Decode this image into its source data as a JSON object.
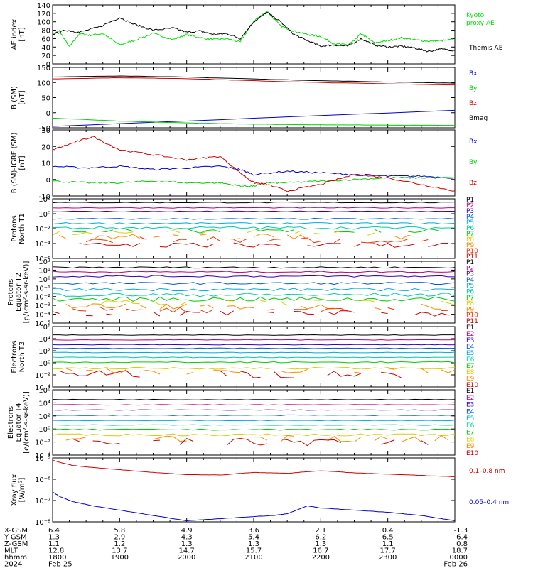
{
  "chart_data": [
    {
      "type": "line",
      "ylabel": [
        "AE index",
        "[nT]"
      ],
      "ylim": [
        0,
        140
      ],
      "yticks": [
        "140",
        "120",
        "100",
        "80",
        "60",
        "40",
        "20",
        "0"
      ],
      "ytick_values": [
        140,
        120,
        100,
        80,
        60,
        40,
        20,
        0
      ],
      "series": [
        {
          "name": "Kyoto proxy AE",
          "color": "#00dd00",
          "legend_lines": [
            "Kyoto",
            "proxy AE"
          ],
          "x": [
            0,
            0.1,
            0.25,
            0.4,
            0.55,
            0.75,
            1,
            1.2,
            1.5,
            1.8,
            2.0,
            2.2,
            2.4,
            2.6,
            2.8,
            3.0,
            3.2,
            3.4,
            3.6,
            3.8,
            4.0,
            4.2,
            4.4,
            4.5,
            4.6,
            4.8,
            5.0,
            5.2,
            5.4,
            5.6,
            5.8,
            6.0
          ],
          "y": [
            70,
            78,
            40,
            72,
            68,
            72,
            45,
            55,
            72,
            58,
            70,
            62,
            58,
            60,
            52,
            102,
            125,
            90,
            78,
            70,
            65,
            48,
            45,
            55,
            72,
            50,
            55,
            62,
            57,
            54,
            55,
            58
          ]
        },
        {
          "name": "Themis AE",
          "color": "#000000",
          "legend_lines": [
            "Themis AE"
          ],
          "x": [
            0,
            0.2,
            0.4,
            0.7,
            1,
            1.2,
            1.5,
            1.8,
            2.0,
            2.2,
            2.4,
            2.6,
            2.8,
            3.0,
            3.2,
            3.4,
            3.6,
            3.8,
            4.0,
            4.2,
            4.4,
            4.6,
            4.8,
            5.0,
            5.2,
            5.4,
            5.6,
            5.8,
            6.0
          ],
          "y": [
            70,
            80,
            75,
            88,
            110,
            95,
            80,
            85,
            75,
            78,
            70,
            72,
            60,
            100,
            122,
            100,
            70,
            55,
            42,
            45,
            42,
            60,
            45,
            40,
            42,
            38,
            30,
            35,
            32
          ]
        }
      ]
    },
    {
      "type": "line",
      "ylabel": [
        "B (SM)",
        "[nT]"
      ],
      "ylim": [
        -50,
        150
      ],
      "yticks": [
        "150",
        "100",
        "50",
        "0",
        "-50"
      ],
      "ytick_values": [
        150,
        100,
        50,
        0,
        -50
      ],
      "series": [
        {
          "name": "Bx",
          "color": "#0000cc",
          "x": [
            0,
            6
          ],
          "y": [
            -45,
            8
          ]
        },
        {
          "name": "By",
          "color": "#00cc00",
          "x": [
            0,
            1,
            2,
            3,
            4,
            5,
            6
          ],
          "y": [
            -18,
            -28,
            -34,
            -38,
            -40,
            -41,
            -42
          ]
        },
        {
          "name": "Bz",
          "color": "#cc0000",
          "x": [
            0,
            1,
            2,
            3,
            4,
            5,
            6
          ],
          "y": [
            112,
            116,
            113,
            106,
            100,
            96,
            92
          ]
        },
        {
          "name": "Bmag",
          "color": "#000000",
          "x": [
            0,
            1,
            2,
            3,
            4,
            5,
            6
          ],
          "y": [
            118,
            122,
            118,
            112,
            106,
            102,
            98
          ]
        }
      ]
    },
    {
      "type": "line",
      "ylabel": [
        "B (SM)-IGRF (SM)",
        "[nT]"
      ],
      "ylim": [
        -10,
        30
      ],
      "yticks": [
        "30",
        "20",
        "10",
        "0",
        "-10"
      ],
      "ytick_values": [
        30,
        20,
        10,
        0,
        -10
      ],
      "series": [
        {
          "name": "Bx",
          "color": "#0000cc",
          "x": [
            0,
            0.5,
            1,
            1.5,
            2,
            2.5,
            2.8,
            3.0,
            3.5,
            4,
            4.5,
            5,
            5.5,
            6
          ],
          "y": [
            8,
            7,
            8,
            6,
            7,
            8,
            6,
            3,
            5,
            4,
            3,
            2,
            2,
            1
          ]
        },
        {
          "name": "By",
          "color": "#00cc00",
          "x": [
            0,
            0.5,
            1,
            1.5,
            2,
            2.5,
            2.8,
            3.0,
            3.2,
            3.5,
            4,
            4.5,
            5,
            5.5,
            6
          ],
          "y": [
            -1,
            -2,
            -2,
            -1,
            -2,
            -2,
            -4,
            -4,
            -2,
            -2,
            -1,
            0,
            1,
            1,
            1
          ]
        },
        {
          "name": "Bz",
          "color": "#cc0000",
          "x": [
            0,
            0.3,
            0.6,
            1,
            1.5,
            2,
            2.5,
            2.8,
            3.0,
            3.2,
            3.5,
            4,
            4.5,
            5,
            5.5,
            6
          ],
          "y": [
            18,
            22,
            26,
            18,
            15,
            12,
            14,
            4,
            -2,
            -3,
            -7,
            -3,
            3,
            1,
            -3,
            -7
          ]
        }
      ]
    },
    {
      "type": "line",
      "ylabel": [
        "Protons",
        "North T1"
      ],
      "ylog": true,
      "ylim": [
        -6,
        2
      ],
      "yticks": [
        "10²",
        "10⁰",
        "10⁻²",
        "10⁻⁴",
        "10⁻⁶"
      ],
      "ytick_values": [
        2,
        0,
        -2,
        -4,
        -6
      ],
      "series_labels": [
        "P1",
        "P2",
        "P3",
        "P4",
        "P5",
        "P6",
        "P7",
        "P8",
        "P9",
        "P10",
        "P11"
      ],
      "series_levels": [
        1.5,
        0.8,
        0.3,
        -0.7,
        -1.3,
        -1.9,
        -2.3,
        -2.6,
        -3.1,
        -3.5,
        -4.2
      ],
      "series_noise": [
        0.06,
        0.06,
        0.06,
        0.08,
        0.1,
        0.18,
        0.3,
        0.35,
        0.4,
        0.4,
        0.3
      ],
      "series_colors": [
        "#000000",
        "#bb0077",
        "#3300bb",
        "#0055dd",
        "#00aadd",
        "#00ccaa",
        "#00cc00",
        "#ddcc00",
        "#ff8800",
        "#ee3300",
        "#cc0000"
      ]
    },
    {
      "type": "line",
      "ylabel": [
        "Protons",
        "Equator T2",
        "[p/(cm²-s-sr-keV)]"
      ],
      "ylog": true,
      "ylim": [
        -5,
        2
      ],
      "yticks": [
        "10²",
        "10¹",
        "10⁰",
        "10⁻¹",
        "10⁻²",
        "10⁻³",
        "10⁻⁴",
        "10⁻⁵"
      ],
      "ytick_values": [
        2,
        1,
        0,
        -1,
        -2,
        -3,
        -4,
        -5
      ],
      "series_labels": [
        "P1",
        "P2",
        "P3",
        "P4",
        "P5",
        "P6",
        "P7",
        "P8",
        "P9",
        "P10",
        "P11"
      ],
      "series_levels": [
        1.3,
        0.8,
        0.3,
        -0.5,
        -1.2,
        -1.8,
        -2.3,
        -2.7,
        -3.1,
        -3.5,
        -3.9
      ],
      "series_noise": [
        0.08,
        0.08,
        0.1,
        0.12,
        0.15,
        0.2,
        0.25,
        0.3,
        0.35,
        0.35,
        0.3
      ],
      "series_colors": [
        "#000000",
        "#bb0077",
        "#3300bb",
        "#0055dd",
        "#00aadd",
        "#00ccaa",
        "#00cc00",
        "#ddcc00",
        "#ff8800",
        "#ee3300",
        "#cc0000"
      ]
    },
    {
      "type": "line",
      "ylabel": [
        "Electrons",
        "North T3"
      ],
      "ylog": true,
      "ylim": [
        -4,
        6
      ],
      "yticks": [
        "10⁶",
        "10⁴",
        "10²",
        "10⁰",
        "10⁻²",
        "10⁻⁴"
      ],
      "ytick_values": [
        6,
        4,
        2,
        0,
        -2,
        -4
      ],
      "series_labels": [
        "E1",
        "E2",
        "E3",
        "E4",
        "E5",
        "E6",
        "E7",
        "E8",
        "E9",
        "E10"
      ],
      "series_levels": [
        4.6,
        3.8,
        3.0,
        2.4,
        1.7,
        0.9,
        0.1,
        -0.9,
        -1.4,
        -1.9
      ],
      "series_noise": [
        0.05,
        0.05,
        0.05,
        0.05,
        0.05,
        0.06,
        0.1,
        0.15,
        0.5,
        0.6
      ],
      "series_colors": [
        "#000000",
        "#bb0077",
        "#3300bb",
        "#0055dd",
        "#00aadd",
        "#00ccaa",
        "#00cc00",
        "#ddcc00",
        "#ff8800",
        "#cc0000"
      ]
    },
    {
      "type": "line",
      "ylabel": [
        "Electrons",
        "Equator T4",
        "[e/(cm²-s-sr-keV)]"
      ],
      "ylog": true,
      "ylim": [
        -4,
        6
      ],
      "yticks": [
        "10⁶",
        "10⁴",
        "10²",
        "10⁰",
        "10⁻²",
        "10⁻⁴"
      ],
      "ytick_values": [
        6,
        4,
        2,
        0,
        -2,
        -4
      ],
      "series_labels": [
        "E1",
        "E2",
        "E3",
        "E4",
        "E5",
        "E6",
        "E7",
        "E8",
        "E9",
        "E10"
      ],
      "series_levels": [
        4.5,
        3.7,
        2.9,
        2.1,
        1.3,
        0.6,
        -0.1,
        -0.9,
        -1.5,
        -2.0
      ],
      "series_noise": [
        0.05,
        0.05,
        0.05,
        0.05,
        0.05,
        0.06,
        0.1,
        0.15,
        0.5,
        0.6
      ],
      "series_colors": [
        "#000000",
        "#bb0077",
        "#3300bb",
        "#0055dd",
        "#00aadd",
        "#00ccaa",
        "#00cc00",
        "#ddcc00",
        "#ff8800",
        "#cc0000"
      ]
    },
    {
      "type": "line",
      "ylabel": [
        "Xray flux",
        "[W/m²]"
      ],
      "ylog": true,
      "ylim": [
        -8,
        -5
      ],
      "yticks": [
        "10⁻⁵",
        "10⁻⁶",
        "10⁻⁷",
        "10⁻⁸"
      ],
      "ytick_values": [
        -5,
        -6,
        -7,
        -8
      ],
      "series": [
        {
          "name": "0.1–0.8 nm",
          "color": "#cc0000",
          "x": [
            0,
            0.1,
            0.3,
            0.6,
            1,
            1.5,
            2,
            2.5,
            3,
            3.5,
            4,
            4.5,
            5,
            5.5,
            6
          ],
          "y": [
            -5.1,
            -5.2,
            -5.35,
            -5.45,
            -5.55,
            -5.68,
            -5.78,
            -5.8,
            -5.68,
            -5.72,
            -5.6,
            -5.7,
            -5.76,
            -5.82,
            -5.88
          ]
        },
        {
          "name": "0.05–0.4 nm",
          "color": "#0000cc",
          "x": [
            0,
            0.1,
            0.3,
            0.6,
            1,
            1.5,
            2,
            2.5,
            3,
            3.3,
            3.5,
            3.8,
            4,
            4.5,
            5,
            5.5,
            6
          ],
          "y": [
            -6.6,
            -6.8,
            -7.05,
            -7.25,
            -7.45,
            -7.7,
            -7.95,
            -7.85,
            -7.75,
            -7.7,
            -7.62,
            -7.25,
            -7.35,
            -7.45,
            -7.55,
            -7.7,
            -7.95
          ]
        }
      ]
    }
  ],
  "ephemeris": {
    "row_labels": [
      "X-GSM",
      "Y-GSM",
      "Z-GSM",
      "MLT",
      "hhmm",
      "2024"
    ],
    "columns": [
      [
        "6.4",
        "1.3",
        "1.1",
        "12.8",
        "1800",
        "Feb 25"
      ],
      [
        "5.8",
        "2.9",
        "1.2",
        "13.7",
        "1900",
        ""
      ],
      [
        "4.9",
        "4.3",
        "1.3",
        "14.7",
        "2000",
        ""
      ],
      [
        "3.6",
        "5.4",
        "1.3",
        "15.7",
        "2100",
        ""
      ],
      [
        "2.1",
        "6.2",
        "1.3",
        "16.7",
        "2200",
        ""
      ],
      [
        "0.4",
        "6.5",
        "1.1",
        "17.7",
        "2300",
        ""
      ],
      [
        "-1.3",
        "6.4",
        "0.8",
        "18.7",
        "0000",
        "Feb 26"
      ]
    ]
  }
}
